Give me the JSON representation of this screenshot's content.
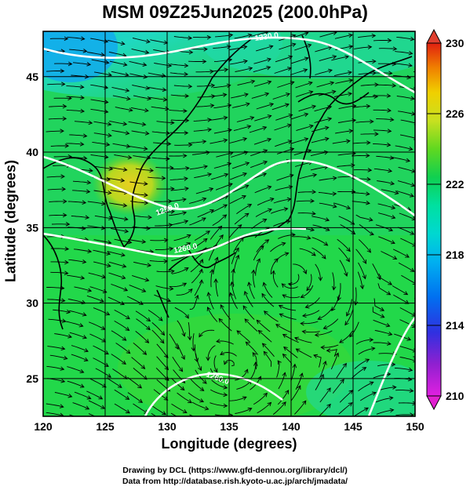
{
  "title": "MSM 09Z25Jun2025 (200.0hPa)",
  "xlabel": "Longitude (degrees)",
  "ylabel": "Latitude  (degrees)",
  "credit_line1": "Drawing by DCL (https://www.gfd-dennou.org/library/dcl/)",
  "credit_line2": "Data from http://database.rish.kyoto-u.ac.jp/arch/jmadata/",
  "map": {
    "lon_range": [
      120,
      150
    ],
    "lat_range": [
      22.5,
      48
    ],
    "lon_ticks": [
      120,
      125,
      130,
      135,
      140,
      145,
      150
    ],
    "lat_ticks": [
      25,
      30,
      35,
      40,
      45
    ],
    "field": "temperature at 200 hPa",
    "streamlines": "wind direction",
    "contour_labels": [
      "1230.0",
      "1250.0",
      "1260.0",
      "1260.0"
    ],
    "colorbar": {
      "min": 210,
      "max": 230,
      "tick_labels": [
        "230",
        "226",
        "222",
        "218",
        "214",
        "210"
      ],
      "colors": [
        "#e020e0",
        "#9020d0",
        "#3030e0",
        "#0070f0",
        "#00b0f0",
        "#00d8d0",
        "#00e0a0",
        "#10d050",
        "#60d820",
        "#c8e020",
        "#f0d000",
        "#f08000",
        "#e02010"
      ]
    }
  }
}
